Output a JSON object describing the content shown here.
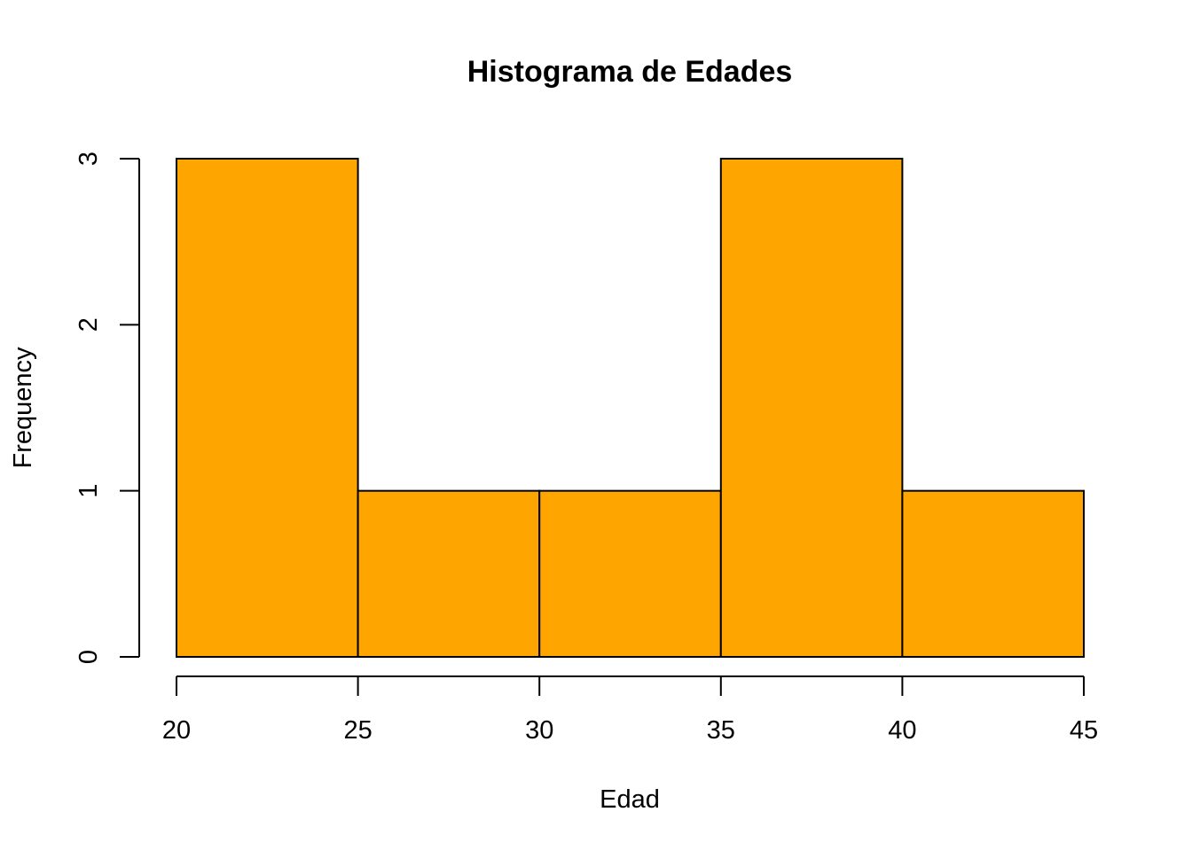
{
  "chart_data": {
    "type": "bar",
    "title": "Histograma de Edades",
    "xlabel": "Edad",
    "ylabel": "Frequency",
    "bins": [
      {
        "start": 20,
        "end": 25,
        "count": 3
      },
      {
        "start": 25,
        "end": 30,
        "count": 1
      },
      {
        "start": 30,
        "end": 35,
        "count": 1
      },
      {
        "start": 35,
        "end": 40,
        "count": 3
      },
      {
        "start": 40,
        "end": 45,
        "count": 1
      }
    ],
    "xlim": [
      20,
      45
    ],
    "ylim": [
      0,
      3
    ],
    "xticks": [
      20,
      25,
      30,
      35,
      40,
      45
    ],
    "yticks": [
      0,
      1,
      2,
      3
    ],
    "bar_color": "#FFA500",
    "grid": false,
    "legend": "none"
  }
}
